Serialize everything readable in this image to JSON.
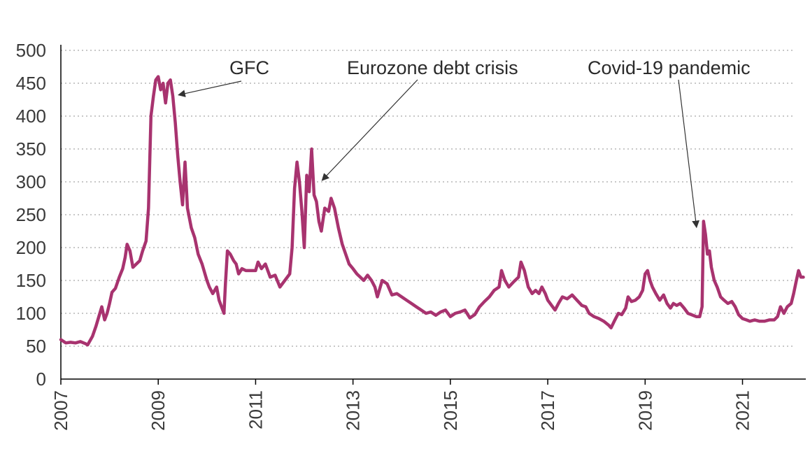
{
  "chart_data": {
    "type": "line",
    "title": "",
    "xlabel": "",
    "ylabel": "",
    "xlim": [
      2007,
      2022.3
    ],
    "ylim": [
      0,
      500
    ],
    "y_ticks": [
      0,
      50,
      100,
      150,
      200,
      250,
      300,
      350,
      400,
      450,
      500
    ],
    "x_ticks": [
      2007,
      2009,
      2011,
      2013,
      2015,
      2017,
      2019,
      2021
    ],
    "grid": "horizontal dotted",
    "legend": "none",
    "series": [
      {
        "color": "#a8336f",
        "points": [
          [
            2007.0,
            60
          ],
          [
            2007.1,
            55
          ],
          [
            2007.2,
            56
          ],
          [
            2007.3,
            55
          ],
          [
            2007.4,
            57
          ],
          [
            2007.5,
            54
          ],
          [
            2007.55,
            52
          ],
          [
            2007.65,
            65
          ],
          [
            2007.72,
            80
          ],
          [
            2007.78,
            95
          ],
          [
            2007.84,
            110
          ],
          [
            2007.9,
            90
          ],
          [
            2007.95,
            100
          ],
          [
            2008.0,
            115
          ],
          [
            2008.05,
            132
          ],
          [
            2008.12,
            138
          ],
          [
            2008.2,
            155
          ],
          [
            2008.27,
            168
          ],
          [
            2008.32,
            185
          ],
          [
            2008.36,
            205
          ],
          [
            2008.42,
            195
          ],
          [
            2008.48,
            170
          ],
          [
            2008.55,
            175
          ],
          [
            2008.62,
            180
          ],
          [
            2008.68,
            195
          ],
          [
            2008.75,
            210
          ],
          [
            2008.8,
            260
          ],
          [
            2008.85,
            400
          ],
          [
            2008.9,
            430
          ],
          [
            2008.95,
            455
          ],
          [
            2009.0,
            460
          ],
          [
            2009.05,
            440
          ],
          [
            2009.1,
            450
          ],
          [
            2009.15,
            420
          ],
          [
            2009.2,
            450
          ],
          [
            2009.25,
            455
          ],
          [
            2009.3,
            430
          ],
          [
            2009.35,
            390
          ],
          [
            2009.4,
            340
          ],
          [
            2009.45,
            300
          ],
          [
            2009.5,
            265
          ],
          [
            2009.55,
            330
          ],
          [
            2009.6,
            260
          ],
          [
            2009.68,
            230
          ],
          [
            2009.75,
            215
          ],
          [
            2009.82,
            190
          ],
          [
            2009.9,
            175
          ],
          [
            2010.0,
            150
          ],
          [
            2010.05,
            140
          ],
          [
            2010.12,
            130
          ],
          [
            2010.2,
            140
          ],
          [
            2010.25,
            120
          ],
          [
            2010.3,
            110
          ],
          [
            2010.35,
            100
          ],
          [
            2010.38,
            145
          ],
          [
            2010.42,
            195
          ],
          [
            2010.48,
            190
          ],
          [
            2010.55,
            180
          ],
          [
            2010.6,
            175
          ],
          [
            2010.65,
            160
          ],
          [
            2010.72,
            168
          ],
          [
            2010.8,
            165
          ],
          [
            2010.88,
            165
          ],
          [
            2011.0,
            165
          ],
          [
            2011.05,
            178
          ],
          [
            2011.12,
            168
          ],
          [
            2011.2,
            175
          ],
          [
            2011.3,
            155
          ],
          [
            2011.4,
            158
          ],
          [
            2011.5,
            140
          ],
          [
            2011.6,
            150
          ],
          [
            2011.7,
            160
          ],
          [
            2011.75,
            200
          ],
          [
            2011.8,
            290
          ],
          [
            2011.85,
            330
          ],
          [
            2011.9,
            300
          ],
          [
            2011.95,
            255
          ],
          [
            2012.0,
            200
          ],
          [
            2012.05,
            310
          ],
          [
            2012.1,
            285
          ],
          [
            2012.15,
            350
          ],
          [
            2012.2,
            280
          ],
          [
            2012.25,
            270
          ],
          [
            2012.3,
            240
          ],
          [
            2012.35,
            225
          ],
          [
            2012.42,
            260
          ],
          [
            2012.5,
            255
          ],
          [
            2012.55,
            275
          ],
          [
            2012.62,
            260
          ],
          [
            2012.7,
            230
          ],
          [
            2012.78,
            205
          ],
          [
            2012.85,
            190
          ],
          [
            2012.92,
            175
          ],
          [
            2013.0,
            168
          ],
          [
            2013.08,
            160
          ],
          [
            2013.15,
            155
          ],
          [
            2013.22,
            150
          ],
          [
            2013.3,
            158
          ],
          [
            2013.38,
            150
          ],
          [
            2013.45,
            140
          ],
          [
            2013.5,
            125
          ],
          [
            2013.6,
            150
          ],
          [
            2013.7,
            145
          ],
          [
            2013.8,
            128
          ],
          [
            2013.9,
            130
          ],
          [
            2014.0,
            125
          ],
          [
            2014.1,
            120
          ],
          [
            2014.2,
            115
          ],
          [
            2014.3,
            110
          ],
          [
            2014.4,
            105
          ],
          [
            2014.5,
            100
          ],
          [
            2014.6,
            102
          ],
          [
            2014.7,
            97
          ],
          [
            2014.8,
            102
          ],
          [
            2014.9,
            105
          ],
          [
            2015.0,
            95
          ],
          [
            2015.1,
            100
          ],
          [
            2015.2,
            102
          ],
          [
            2015.3,
            105
          ],
          [
            2015.4,
            93
          ],
          [
            2015.5,
            98
          ],
          [
            2015.6,
            110
          ],
          [
            2015.7,
            118
          ],
          [
            2015.8,
            125
          ],
          [
            2015.9,
            135
          ],
          [
            2016.0,
            140
          ],
          [
            2016.05,
            165
          ],
          [
            2016.12,
            150
          ],
          [
            2016.2,
            140
          ],
          [
            2016.3,
            148
          ],
          [
            2016.4,
            155
          ],
          [
            2016.45,
            178
          ],
          [
            2016.52,
            165
          ],
          [
            2016.6,
            140
          ],
          [
            2016.68,
            130
          ],
          [
            2016.75,
            135
          ],
          [
            2016.82,
            130
          ],
          [
            2016.88,
            140
          ],
          [
            2016.95,
            130
          ],
          [
            2017.0,
            120
          ],
          [
            2017.08,
            112
          ],
          [
            2017.15,
            105
          ],
          [
            2017.22,
            115
          ],
          [
            2017.3,
            125
          ],
          [
            2017.4,
            122
          ],
          [
            2017.5,
            128
          ],
          [
            2017.6,
            120
          ],
          [
            2017.7,
            112
          ],
          [
            2017.78,
            110
          ],
          [
            2017.85,
            100
          ],
          [
            2017.95,
            95
          ],
          [
            2018.05,
            92
          ],
          [
            2018.15,
            88
          ],
          [
            2018.25,
            82
          ],
          [
            2018.3,
            78
          ],
          [
            2018.38,
            90
          ],
          [
            2018.45,
            100
          ],
          [
            2018.52,
            98
          ],
          [
            2018.6,
            108
          ],
          [
            2018.65,
            125
          ],
          [
            2018.72,
            118
          ],
          [
            2018.8,
            120
          ],
          [
            2018.88,
            125
          ],
          [
            2018.95,
            135
          ],
          [
            2019.0,
            160
          ],
          [
            2019.05,
            165
          ],
          [
            2019.1,
            150
          ],
          [
            2019.15,
            140
          ],
          [
            2019.22,
            130
          ],
          [
            2019.3,
            120
          ],
          [
            2019.38,
            128
          ],
          [
            2019.45,
            115
          ],
          [
            2019.52,
            108
          ],
          [
            2019.58,
            115
          ],
          [
            2019.65,
            112
          ],
          [
            2019.72,
            115
          ],
          [
            2019.8,
            108
          ],
          [
            2019.88,
            100
          ],
          [
            2019.95,
            98
          ],
          [
            2020.05,
            95
          ],
          [
            2020.12,
            95
          ],
          [
            2020.17,
            110
          ],
          [
            2020.2,
            240
          ],
          [
            2020.24,
            220
          ],
          [
            2020.28,
            190
          ],
          [
            2020.32,
            195
          ],
          [
            2020.36,
            170
          ],
          [
            2020.42,
            150
          ],
          [
            2020.48,
            140
          ],
          [
            2020.55,
            125
          ],
          [
            2020.62,
            120
          ],
          [
            2020.7,
            115
          ],
          [
            2020.78,
            118
          ],
          [
            2020.85,
            110
          ],
          [
            2020.92,
            98
          ],
          [
            2021.0,
            92
          ],
          [
            2021.08,
            90
          ],
          [
            2021.15,
            88
          ],
          [
            2021.25,
            90
          ],
          [
            2021.35,
            88
          ],
          [
            2021.45,
            88
          ],
          [
            2021.55,
            90
          ],
          [
            2021.65,
            90
          ],
          [
            2021.72,
            95
          ],
          [
            2021.78,
            110
          ],
          [
            2021.85,
            100
          ],
          [
            2021.92,
            110
          ],
          [
            2022.0,
            115
          ],
          [
            2022.05,
            130
          ],
          [
            2022.1,
            148
          ],
          [
            2022.15,
            165
          ],
          [
            2022.2,
            155
          ],
          [
            2022.25,
            155
          ]
        ]
      }
    ],
    "annotations": [
      {
        "text": "GFC",
        "point": [
          2009.3,
          430
        ]
      },
      {
        "text": "Eurozone debt crisis",
        "point": [
          2012.25,
          300
        ]
      },
      {
        "text": "Covid-19 pandemic",
        "point": [
          2020.2,
          220
        ]
      }
    ]
  }
}
